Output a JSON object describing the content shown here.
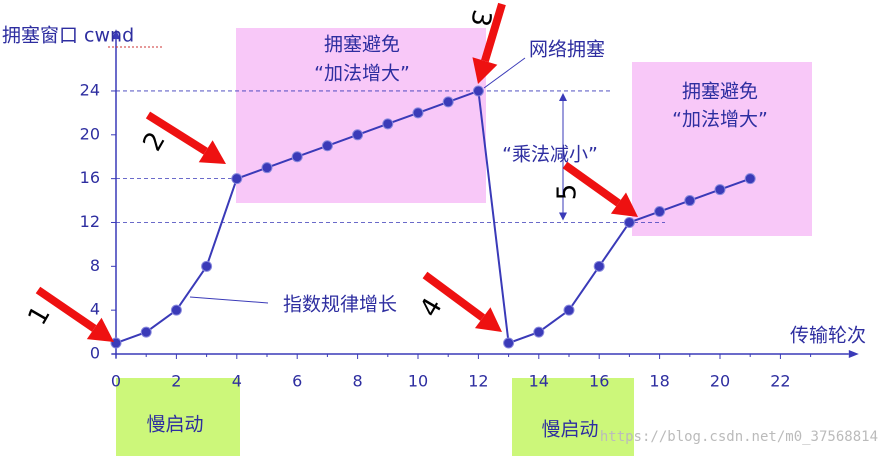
{
  "chart_data": {
    "type": "line",
    "y_label": "拥塞窗口 cwnd",
    "x_label": "传输轮次",
    "x": [
      0,
      1,
      2,
      3,
      4,
      5,
      6,
      7,
      8,
      9,
      10,
      11,
      12,
      13,
      14,
      15,
      16,
      17,
      18,
      19,
      20,
      21
    ],
    "series": [
      {
        "color": "#3a3ab8",
        "values": [
          1,
          2,
          4,
          8,
          16,
          17,
          18,
          19,
          20,
          21,
          22,
          23,
          24,
          1,
          2,
          4,
          8,
          12,
          13,
          14,
          15,
          16
        ]
      }
    ],
    "xlim": [
      0,
      24
    ],
    "ylim": [
      0,
      28
    ],
    "xticks": [
      0,
      2,
      4,
      6,
      8,
      10,
      12,
      14,
      16,
      18,
      20,
      22
    ],
    "yticks": [
      0,
      4,
      8,
      12,
      16,
      20,
      24
    ],
    "annotations": [
      "拥塞避免",
      "“加法增大”",
      "网络拥塞",
      "“乘法减小”",
      "指数规律增长",
      "拥塞避免",
      "“加法增大”",
      "慢启动",
      "慢启动"
    ],
    "arrow_labels": [
      "1",
      "2",
      "3",
      "4",
      "5"
    ],
    "watermark": "https://blog.csdn.net/m0_37568814"
  }
}
